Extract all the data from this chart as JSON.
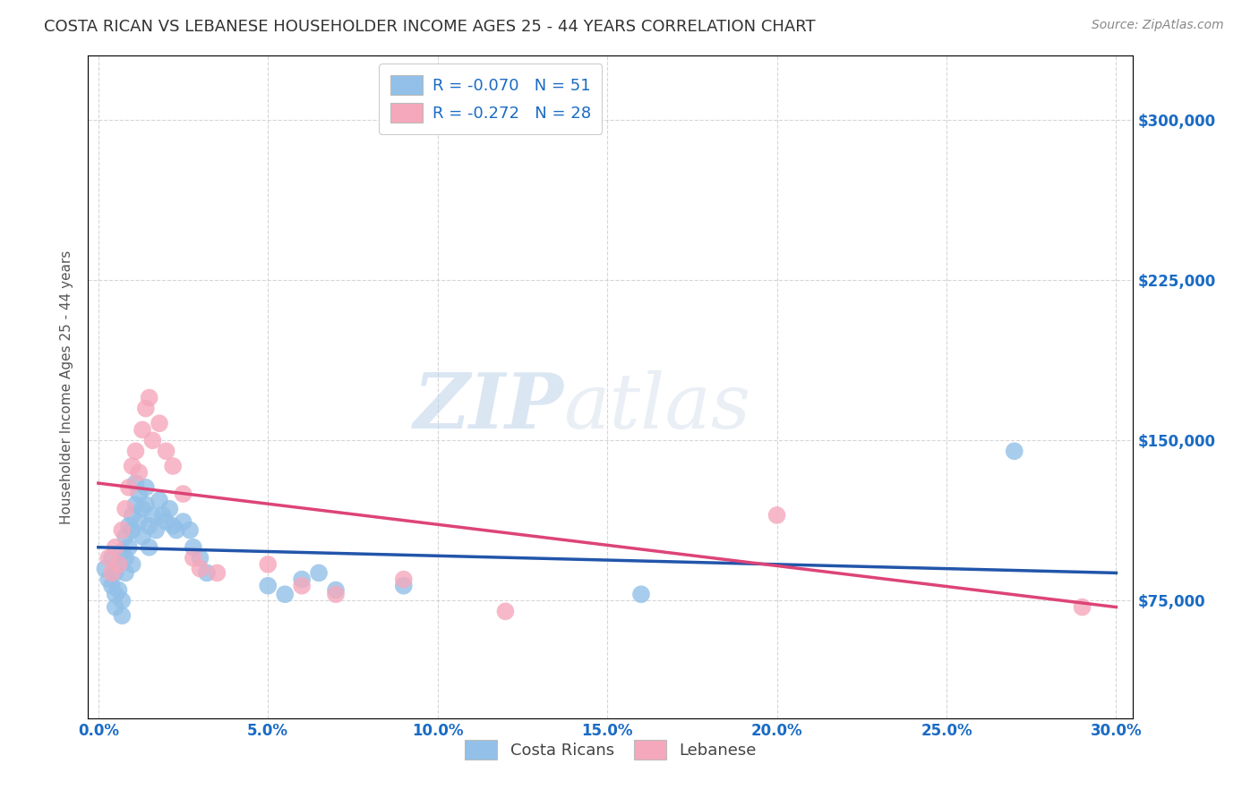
{
  "title": "COSTA RICAN VS LEBANESE HOUSEHOLDER INCOME AGES 25 - 44 YEARS CORRELATION CHART",
  "source": "Source: ZipAtlas.com",
  "xlabel_ticks": [
    "0.0%",
    "5.0%",
    "10.0%",
    "15.0%",
    "20.0%",
    "25.0%",
    "30.0%"
  ],
  "xlabel_vals": [
    0.0,
    0.05,
    0.1,
    0.15,
    0.2,
    0.25,
    0.3
  ],
  "ylabel_ticks": [
    "$75,000",
    "$150,000",
    "$225,000",
    "$300,000"
  ],
  "ylabel_vals": [
    75000,
    150000,
    225000,
    300000
  ],
  "ylim": [
    20000,
    330000
  ],
  "xlim": [
    -0.003,
    0.305
  ],
  "ylabel": "Householder Income Ages 25 - 44 years",
  "legend_blue_label": "R = -0.070   N = 51",
  "legend_pink_label": "R = -0.272   N = 28",
  "watermark_zip": "ZIP",
  "watermark_atlas": "atlas",
  "blue_color": "#92c0e8",
  "pink_color": "#f5a8bc",
  "blue_line_color": "#2255aa",
  "pink_line_color": "#dd4477",
  "title_color": "#333333",
  "axis_label_color": "#1a6bc4",
  "source_color": "#888888",
  "bg_color": "#ffffff",
  "grid_color": "#cccccc",
  "blue_trend_x0": 0.0,
  "blue_trend_y0": 100000,
  "blue_trend_x1": 0.3,
  "blue_trend_y1": 88000,
  "pink_trend_x0": 0.0,
  "pink_trend_y0": 130000,
  "pink_trend_x1": 0.3,
  "pink_trend_y1": 72000,
  "costa_rican_x": [
    0.002,
    0.003,
    0.004,
    0.004,
    0.005,
    0.005,
    0.005,
    0.006,
    0.006,
    0.007,
    0.007,
    0.007,
    0.008,
    0.008,
    0.008,
    0.009,
    0.009,
    0.01,
    0.01,
    0.01,
    0.011,
    0.011,
    0.012,
    0.012,
    0.013,
    0.013,
    0.014,
    0.014,
    0.015,
    0.015,
    0.016,
    0.017,
    0.018,
    0.019,
    0.02,
    0.021,
    0.022,
    0.023,
    0.025,
    0.027,
    0.028,
    0.03,
    0.032,
    0.05,
    0.055,
    0.06,
    0.065,
    0.07,
    0.09,
    0.16,
    0.27
  ],
  "costa_rican_y": [
    90000,
    85000,
    95000,
    82000,
    88000,
    78000,
    72000,
    92000,
    80000,
    98000,
    75000,
    68000,
    105000,
    95000,
    88000,
    110000,
    100000,
    115000,
    108000,
    92000,
    120000,
    130000,
    125000,
    112000,
    118000,
    105000,
    128000,
    120000,
    110000,
    100000,
    115000,
    108000,
    122000,
    115000,
    112000,
    118000,
    110000,
    108000,
    112000,
    108000,
    100000,
    95000,
    88000,
    82000,
    78000,
    85000,
    88000,
    80000,
    82000,
    78000,
    145000
  ],
  "lebanese_x": [
    0.003,
    0.004,
    0.005,
    0.006,
    0.007,
    0.008,
    0.009,
    0.01,
    0.011,
    0.012,
    0.013,
    0.014,
    0.015,
    0.016,
    0.018,
    0.02,
    0.022,
    0.025,
    0.028,
    0.03,
    0.035,
    0.05,
    0.06,
    0.07,
    0.09,
    0.12,
    0.2,
    0.29
  ],
  "lebanese_y": [
    95000,
    88000,
    100000,
    92000,
    108000,
    118000,
    128000,
    138000,
    145000,
    135000,
    155000,
    165000,
    170000,
    150000,
    158000,
    145000,
    138000,
    125000,
    95000,
    90000,
    88000,
    92000,
    82000,
    78000,
    85000,
    70000,
    115000,
    72000
  ]
}
